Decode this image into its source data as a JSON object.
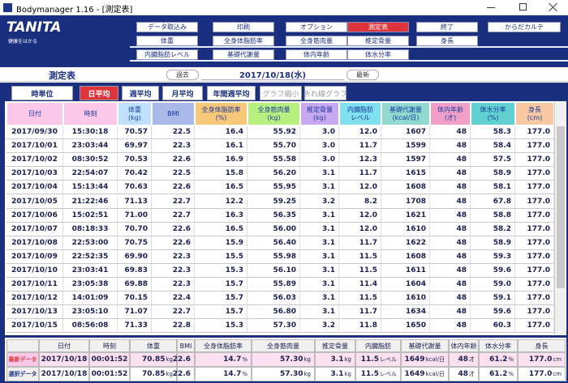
{
  "window": {
    "title": "Bodymanager 1.16 - [測定表]"
  },
  "logo": {
    "brand": "TANITA",
    "tagline": "健康をはかる"
  },
  "menu": [
    [
      "データ取込み",
      "印刷",
      "オプション",
      "測定表",
      "終了",
      "からだカルテ"
    ],
    [
      "体重",
      "全身体脂肪率",
      "全身筋肉量",
      "推定骨量",
      "身長"
    ],
    [
      "内臓脂肪レベル",
      "基礎代謝量",
      "体内年齢",
      "体水分率"
    ]
  ],
  "view": {
    "title": "測定表",
    "prev": "過去",
    "date": "2017/10/18(水)",
    "next": "最新"
  },
  "tabs": [
    "時単位",
    "日平均",
    "週平均",
    "月平均",
    "年間週平均",
    "グラフ縮小",
    "折れ線グラフ"
  ],
  "table": {
    "columns": [
      [
        "日付"
      ],
      [
        "時刻"
      ],
      [
        "体重",
        "(kg)"
      ],
      [
        "BMI"
      ],
      [
        "全身体脂肪率",
        "(%)"
      ],
      [
        "全身筋肉量",
        "(kg)"
      ],
      [
        "推定骨量",
        "(kg)"
      ],
      [
        "内臓脂肪",
        "レベル"
      ],
      [
        "基礎代謝量",
        "(kcal/日)"
      ],
      [
        "体内年齢",
        "(才)"
      ],
      [
        "体水分率",
        "(%)"
      ],
      [
        "身長",
        "(cm)"
      ]
    ],
    "rows": [
      [
        "2017/09/30",
        "15:30:18",
        "70.57",
        "22.5",
        "16.4",
        "55.92",
        "3.0",
        "12.0",
        "1607",
        "48",
        "58.3",
        "177.0"
      ],
      [
        "2017/10/01",
        "23:03:44",
        "69.97",
        "22.3",
        "16.1",
        "55.70",
        "3.0",
        "11.7",
        "1599",
        "48",
        "58.4",
        "177.0"
      ],
      [
        "2017/10/02",
        "08:30:52",
        "70.53",
        "22.6",
        "16.9",
        "55.58",
        "3.0",
        "12.3",
        "1597",
        "48",
        "57.5",
        "177.0"
      ],
      [
        "2017/10/03",
        "22:54:07",
        "70.42",
        "22.5",
        "15.8",
        "56.20",
        "3.1",
        "11.7",
        "1615",
        "48",
        "58.9",
        "177.0"
      ],
      [
        "2017/10/04",
        "15:13:44",
        "70.63",
        "22.6",
        "16.5",
        "55.95",
        "3.1",
        "12.0",
        "1608",
        "48",
        "58.1",
        "177.0"
      ],
      [
        "2017/10/05",
        "21:22:46",
        "71.13",
        "22.7",
        "12.2",
        "59.25",
        "3.2",
        "8.2",
        "1708",
        "48",
        "67.8",
        "177.0"
      ],
      [
        "2017/10/06",
        "15:02:51",
        "71.00",
        "22.7",
        "16.3",
        "56.35",
        "3.1",
        "12.0",
        "1621",
        "48",
        "58.8",
        "177.0"
      ],
      [
        "2017/10/07",
        "08:18:33",
        "70.70",
        "22.6",
        "16.5",
        "56.00",
        "3.1",
        "12.0",
        "1610",
        "48",
        "58.2",
        "177.0"
      ],
      [
        "2017/10/08",
        "22:53:00",
        "70.75",
        "22.6",
        "15.9",
        "56.40",
        "3.1",
        "11.7",
        "1622",
        "48",
        "58.9",
        "177.0"
      ],
      [
        "2017/10/09",
        "22:52:35",
        "69.90",
        "22.3",
        "15.5",
        "55.98",
        "3.1",
        "11.5",
        "1608",
        "48",
        "59.3",
        "177.0"
      ],
      [
        "2017/10/10",
        "23:03:41",
        "69.83",
        "22.3",
        "15.3",
        "56.10",
        "3.1",
        "11.5",
        "1611",
        "48",
        "59.6",
        "177.0"
      ],
      [
        "2017/10/11",
        "23:05:38",
        "69.88",
        "22.3",
        "15.7",
        "55.89",
        "3.1",
        "11.4",
        "1604",
        "48",
        "59.0",
        "177.0"
      ],
      [
        "2017/10/12",
        "14:01:09",
        "70.15",
        "22.4",
        "15.7",
        "56.03",
        "3.1",
        "11.5",
        "1610",
        "48",
        "59.1",
        "177.0"
      ],
      [
        "2017/10/13",
        "23:05:10",
        "71.07",
        "22.7",
        "15.7",
        "56.80",
        "3.1",
        "11.7",
        "1634",
        "48",
        "59.6",
        "177.0"
      ],
      [
        "2017/10/15",
        "08:56:08",
        "71.33",
        "22.8",
        "15.3",
        "57.30",
        "3.2",
        "11.8",
        "1650",
        "48",
        "60.3",
        "177.0"
      ]
    ]
  },
  "summary": {
    "columns": [
      "日付",
      "時刻",
      "体重",
      "BMI",
      "全身体脂肪率",
      "全身筋肉量",
      "推定骨量",
      "内臓脂肪",
      "基礎代謝量",
      "体内年齢",
      "体水分率",
      "身長"
    ],
    "rows": [
      {
        "label": "最新データ",
        "cells": [
          "2017/10/18",
          "00:01:52",
          [
            "70.85",
            "kg"
          ],
          "22.6",
          [
            "14.7",
            "%"
          ],
          [
            "57.30",
            "kg"
          ],
          [
            "3.1",
            "kg"
          ],
          [
            "11.5",
            "レベル"
          ],
          [
            "1649",
            "kcal/日"
          ],
          [
            "48",
            "才"
          ],
          [
            "61.2",
            "%"
          ],
          [
            "177.0",
            "cm"
          ]
        ]
      },
      {
        "label": "選択データ",
        "cells": [
          "2017/10/18",
          "00:01:52",
          [
            "70.85",
            "kg"
          ],
          "22.6",
          [
            "14.7",
            "%"
          ],
          [
            "57.30",
            "kg"
          ],
          [
            "3.1",
            "kg"
          ],
          [
            "11.5",
            "レベル"
          ],
          [
            "1649",
            "kcal/日"
          ],
          [
            "48",
            "才"
          ],
          [
            "61.2",
            "%"
          ],
          [
            "177.0",
            "cm"
          ]
        ]
      }
    ]
  }
}
